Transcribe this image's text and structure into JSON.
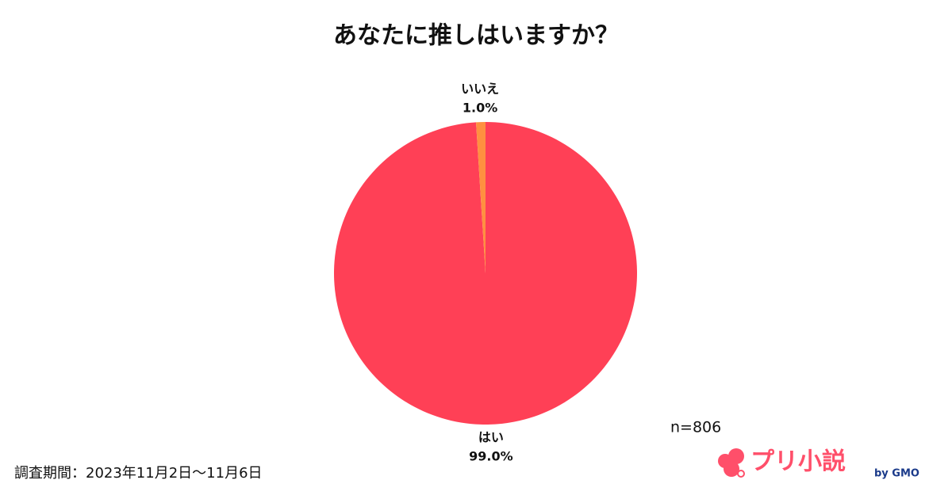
{
  "chart_data": {
    "type": "pie",
    "title": "あなたに推しはいますか？",
    "categories": [
      "はい",
      "いいえ"
    ],
    "values": [
      99.0,
      1.0
    ],
    "value_labels": [
      "99.0%",
      "1.0%"
    ],
    "colors": [
      "#ff4056",
      "#ff9040"
    ],
    "note": "n=806",
    "source": "調査期間：2023年11月2日〜11月6日"
  },
  "logo": {
    "text": "プリ小説",
    "byline": "by GMO"
  }
}
